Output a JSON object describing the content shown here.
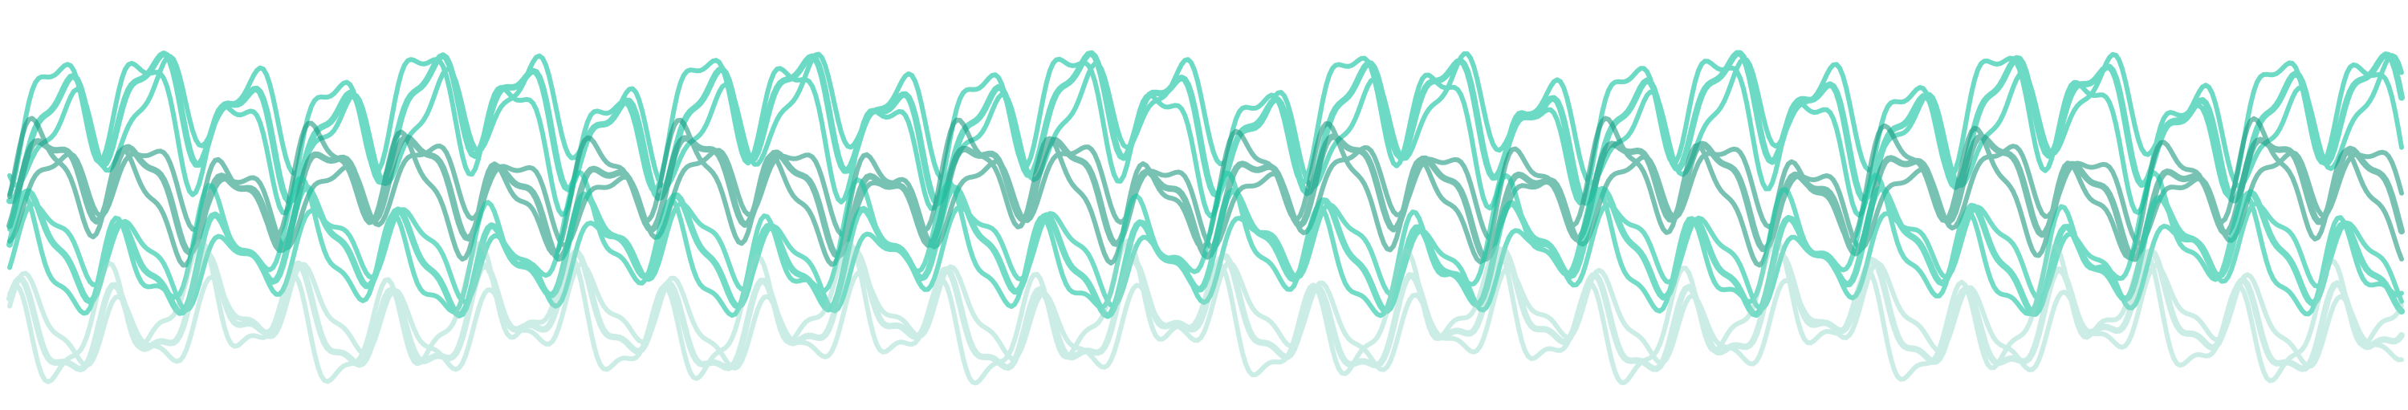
{
  "artwork": {
    "subject": "",
    "colors": {
      "background": "#ffffff",
      "primary": "#1ec7a5",
      "mid": "#22b494",
      "dark": "#1d9a82",
      "light": "#a7e3d5"
    },
    "bands": [
      {
        "name": "band-top",
        "color": "#1ec7a5",
        "opacity": 0.65,
        "strands": 3
      },
      {
        "name": "band-upper-middle",
        "color": "#1d9a82",
        "opacity": 0.6,
        "strands": 3
      },
      {
        "name": "band-lower-middle",
        "color": "#1ec7a5",
        "opacity": 0.62,
        "strands": 3
      },
      {
        "name": "band-bottom",
        "color": "#8fd8c7",
        "opacity": 0.45,
        "strands": 3
      }
    ]
  }
}
